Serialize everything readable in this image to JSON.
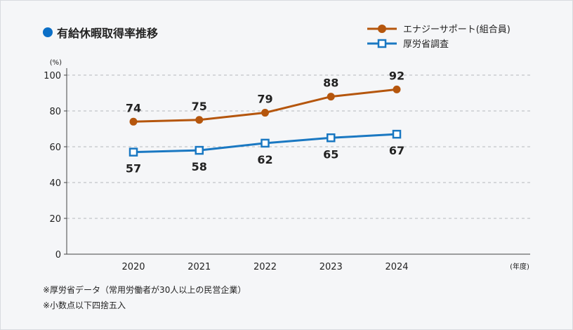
{
  "title": "有給休暇取得率推移",
  "colors": {
    "title_dot": "#0b6fc7",
    "energy_support": "#b5560d",
    "mhlw": "#1a78c2"
  },
  "notes": [
    "※厚労省データ（常用労働者が30人以上の民営企業）",
    "※小数点以下四捨五入"
  ],
  "chart_data": {
    "type": "line",
    "categories": [
      "2020",
      "2021",
      "2022",
      "2023",
      "2024"
    ],
    "series": [
      {
        "name": "エナジーサポート(組合員)",
        "values": [
          74,
          75,
          79,
          88,
          92
        ],
        "marker": "circle",
        "label_position": "above"
      },
      {
        "name": "厚労省調査",
        "values": [
          57,
          58,
          62,
          65,
          67
        ],
        "marker": "square",
        "label_position": "below"
      }
    ],
    "ylabel": "(%)",
    "xlabel": "(年度)",
    "ylim": [
      0,
      100
    ],
    "yticks": [
      "0",
      "20",
      "40",
      "60",
      "80",
      "100"
    ],
    "grid": true,
    "legend": "top-right"
  }
}
